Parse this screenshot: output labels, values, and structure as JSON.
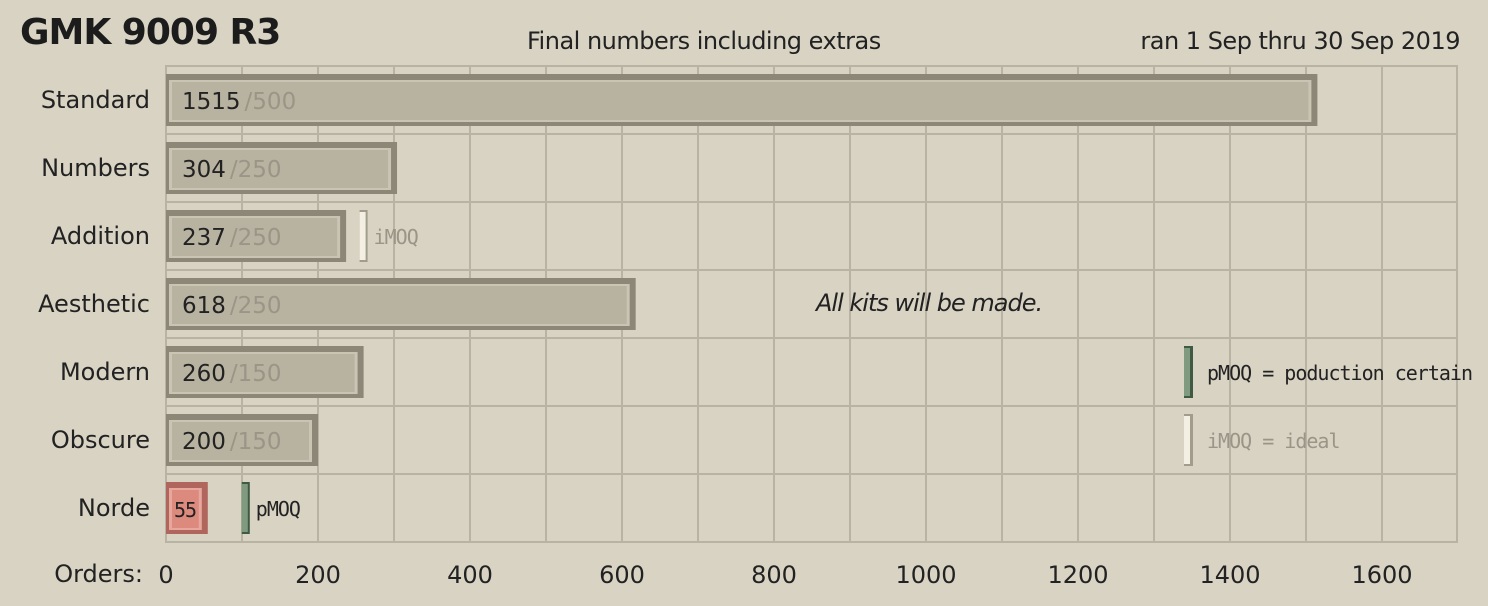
{
  "header": {
    "title": "GMK 9009 R3",
    "subtitle": "Final numbers including extras",
    "date_range": "ran 1 Sep thru 30 Sep 2019"
  },
  "chart_data": {
    "type": "bar",
    "orientation": "horizontal",
    "xlabel": "Orders:",
    "xlim": [
      0,
      1700
    ],
    "xticks": [
      0,
      200,
      400,
      600,
      800,
      1000,
      1200,
      1400,
      1600
    ],
    "grid": true,
    "categories": [
      "Standard",
      "Numbers",
      "Addition",
      "Aesthetic",
      "Modern",
      "Obscure",
      "Norde"
    ],
    "values": [
      1515,
      304,
      237,
      618,
      260,
      200,
      55
    ],
    "goal_labels": [
      "/500",
      "/250",
      "/250",
      "/250",
      "/150",
      "/150",
      ""
    ],
    "markers": [
      {
        "category": "Addition",
        "type": "iMOQ",
        "value": 260,
        "label": "iMOQ"
      },
      {
        "category": "Norde",
        "type": "pMOQ",
        "value": 105,
        "label": "pMOQ"
      }
    ],
    "annotation": "All kits will be made.",
    "legend": {
      "placement": "right",
      "items": [
        {
          "type": "pMOQ",
          "label": "pMOQ = poduction certain",
          "color": "#7f9a7f"
        },
        {
          "type": "iMOQ",
          "label": "iMOQ = ideal",
          "color": "#f3efe2"
        }
      ]
    },
    "colors": {
      "background": "#d8d3c3",
      "grid": "#b9b3a3",
      "bar": "#b8b2a0",
      "bar_below": "#dd8a7e",
      "pmoq": "#7f9a7f",
      "imoq": "#f3efe2",
      "goal_text": "#9a9587"
    }
  }
}
